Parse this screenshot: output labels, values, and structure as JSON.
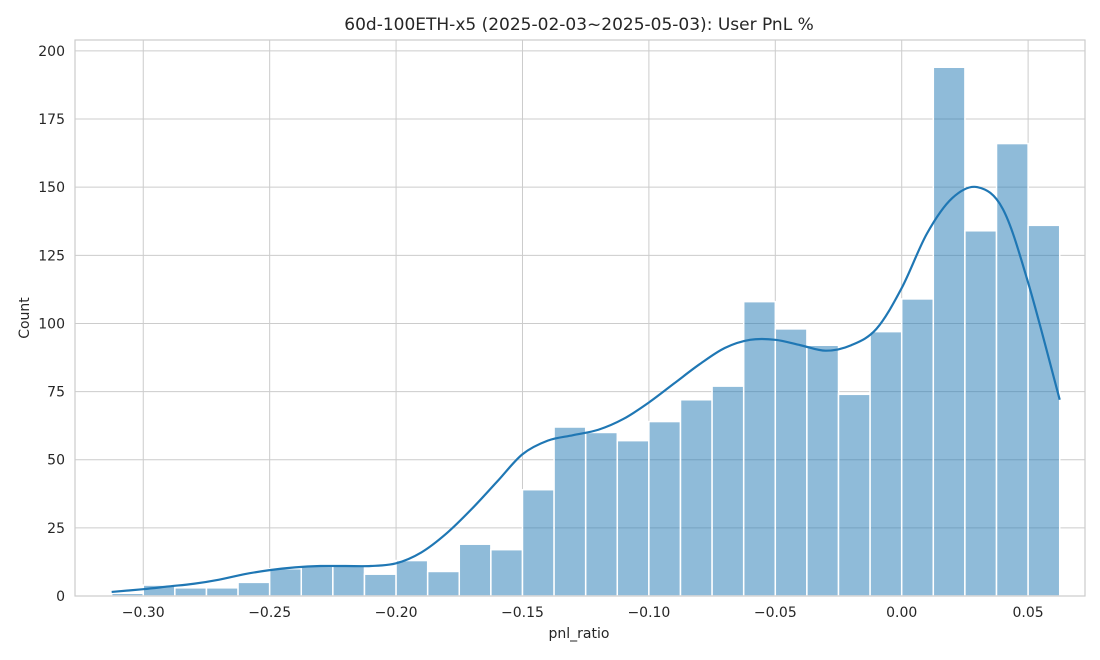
{
  "chart_data": {
    "type": "histogram",
    "title": "60d-100ETH-x5 (2025-02-03~2025-05-03): User PnL %",
    "xlabel": "pnl_ratio",
    "ylabel": "Count",
    "xlim": [
      -0.327,
      0.0725
    ],
    "ylim": [
      0,
      204
    ],
    "x_ticks": [
      -0.3,
      -0.25,
      -0.2,
      -0.15,
      -0.1,
      -0.05,
      0.0,
      0.05
    ],
    "x_tick_labels": [
      "−0.30",
      "−0.25",
      "−0.20",
      "−0.15",
      "−0.10",
      "−0.05",
      "0.00",
      "0.05"
    ],
    "y_ticks": [
      0,
      25,
      50,
      75,
      100,
      125,
      150,
      175,
      200
    ],
    "y_tick_labels": [
      "0",
      "25",
      "50",
      "75",
      "100",
      "125",
      "150",
      "175",
      "200"
    ],
    "grid": true,
    "bins": {
      "start": -0.3125,
      "width": 0.0125,
      "counts": [
        1,
        4,
        3,
        3,
        5,
        10,
        11,
        11,
        8,
        13,
        9,
        19,
        17,
        39,
        62,
        60,
        57,
        64,
        72,
        77,
        108,
        98,
        92,
        74,
        97,
        109,
        194,
        134,
        166,
        136
      ]
    },
    "kde": {
      "x": [
        -0.3125,
        -0.3,
        -0.29,
        -0.28,
        -0.27,
        -0.26,
        -0.25,
        -0.24,
        -0.23,
        -0.22,
        -0.21,
        -0.2,
        -0.19,
        -0.18,
        -0.17,
        -0.16,
        -0.15,
        -0.14,
        -0.13,
        -0.12,
        -0.11,
        -0.1,
        -0.09,
        -0.08,
        -0.07,
        -0.06,
        -0.05,
        -0.04,
        -0.03,
        -0.02,
        -0.01,
        0.0,
        0.01,
        0.02,
        0.03,
        0.04,
        0.05,
        0.0625
      ],
      "y": [
        1.5,
        2.5,
        3.5,
        4.5,
        6,
        8,
        9.5,
        10.5,
        11,
        11,
        11,
        12,
        16,
        23,
        32,
        42,
        52,
        57,
        59,
        61,
        65,
        71,
        78,
        85,
        91,
        94,
        94,
        92,
        90,
        92,
        98,
        113,
        133,
        146,
        150,
        142,
        115,
        72
      ]
    }
  }
}
